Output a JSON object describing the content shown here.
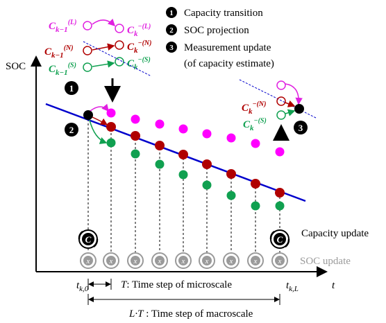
{
  "legend": [
    {
      "number": "1",
      "text": "Capacity transition"
    },
    {
      "number": "2",
      "text": "SOC projection"
    },
    {
      "number": "3",
      "text": "Measurement update"
    },
    {
      "number": "",
      "text": "(of capacity estimate)"
    }
  ],
  "markers": {
    "one": "1",
    "two": "2",
    "three": "3"
  },
  "axes": {
    "y_label": "SOC",
    "x_label": "t",
    "t_start": "t",
    "t_start_sub": "k,0",
    "t_end": "t",
    "t_end_sub": "k,L"
  },
  "annotations": {
    "micro_T": "T",
    "micro_text": ": Time step of microscale",
    "macro_LT": "L·T",
    "macro_text": " : Time step of macroscale",
    "capacity_update": "Capacity update",
    "soc_update": "SOC update",
    "capacity_symbol": "C",
    "soc_symbol": "x"
  },
  "capacity_labels": {
    "prev": [
      {
        "base": "C",
        "sub": "k−1",
        "sup": "(L)",
        "color": "#e020e0"
      },
      {
        "base": "C",
        "sub": "k−1",
        "sup": "(N)",
        "color": "#b00000"
      },
      {
        "base": "C",
        "sub": "k−1",
        "sup": "(S)",
        "color": "#10a050"
      }
    ],
    "next": [
      {
        "base": "C",
        "sub": "k",
        "sup": "−(L)",
        "color": "#e020e0"
      },
      {
        "base": "C",
        "sub": "k",
        "sup": "−(N)",
        "color": "#b00000"
      },
      {
        "base": "C",
        "sub": "k",
        "sup": "−(S)",
        "color": "#10a050"
      }
    ],
    "right": [
      {
        "base": "C",
        "sub": "k",
        "sup": "−(N)",
        "color": "#b00000"
      },
      {
        "base": "C",
        "sub": "k",
        "sup": "−(S)",
        "color": "#10a050"
      }
    ]
  },
  "colors": {
    "large": "#ff00ff",
    "nominal": "#b00000",
    "small": "#10a050",
    "trend_line": "#0000cc",
    "update_gray": "#9a9a9a"
  }
}
